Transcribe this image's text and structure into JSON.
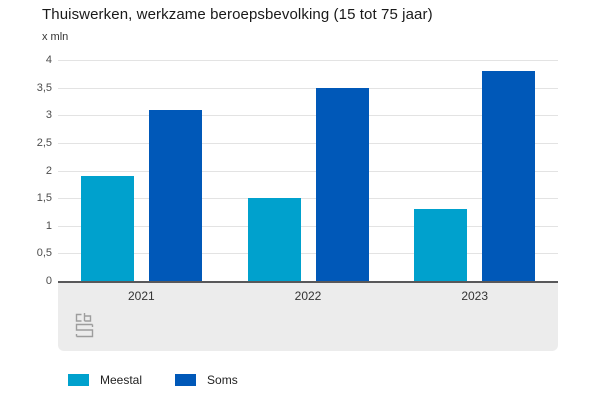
{
  "header": {
    "title": "Thuiswerken, werkzame beroepsbevolking (15 tot 75 jaar)",
    "unit_label": "x mln"
  },
  "chart_data": {
    "type": "bar",
    "title": "Thuiswerken, werkzame beroepsbevolking (15 tot 75 jaar)",
    "xlabel": "",
    "ylabel": "x mln",
    "categories": [
      "2021",
      "2022",
      "2023"
    ],
    "series": [
      {
        "name": "Meestal",
        "color": "#00a1cd",
        "values": [
          1.9,
          1.5,
          1.3
        ]
      },
      {
        "name": "Soms",
        "color": "#0058b8",
        "values": [
          3.1,
          3.5,
          3.8
        ]
      }
    ],
    "ylim": [
      0,
      4
    ],
    "ytick_step": 0.5,
    "y_ticks": [
      {
        "value": 0,
        "label": "0"
      },
      {
        "value": 0.5,
        "label": "0,5"
      },
      {
        "value": 1,
        "label": "1"
      },
      {
        "value": 1.5,
        "label": "1,5"
      },
      {
        "value": 2,
        "label": "2"
      },
      {
        "value": 2.5,
        "label": "2,5"
      },
      {
        "value": 3,
        "label": "3"
      },
      {
        "value": 3.5,
        "label": "3,5"
      },
      {
        "value": 4,
        "label": "4"
      }
    ],
    "grid": true,
    "legend_position": "bottom-left"
  },
  "footer": {
    "logo": "cbs-logo"
  },
  "colors": {
    "grid": "#e3e3e3",
    "axis": "#58585a",
    "band": "#ececec",
    "logo": "#9d9d9d",
    "title_text": "#1a1a1a",
    "tick_text": "#4d4d4d"
  }
}
